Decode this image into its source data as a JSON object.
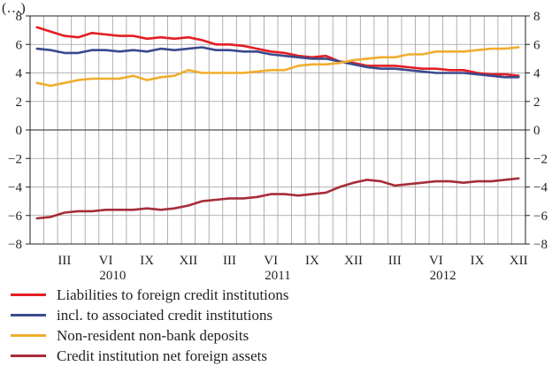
{
  "chart_data": {
    "type": "line",
    "title": "",
    "subtitle": "(…)",
    "xlabel": "",
    "ylabel": "",
    "ylim": [
      -8,
      8
    ],
    "yticks": [
      -8,
      -6,
      -4,
      -2,
      0,
      2,
      4,
      6,
      8
    ],
    "ytick_labels": [
      "−8",
      "−6",
      "−4",
      "−2",
      "0",
      "2",
      "4",
      "6",
      "8"
    ],
    "grid": true,
    "legend_position": "bottom",
    "months": [
      "2010-01",
      "2010-02",
      "2010-03",
      "2010-04",
      "2010-05",
      "2010-06",
      "2010-07",
      "2010-08",
      "2010-09",
      "2010-10",
      "2010-11",
      "2010-12",
      "2011-01",
      "2011-02",
      "2011-03",
      "2011-04",
      "2011-05",
      "2011-06",
      "2011-07",
      "2011-08",
      "2011-09",
      "2011-10",
      "2011-11",
      "2011-12",
      "2012-01",
      "2012-02",
      "2012-03",
      "2012-04",
      "2012-05",
      "2012-06",
      "2012-07",
      "2012-08",
      "2012-09",
      "2012-10",
      "2012-11",
      "2012-12"
    ],
    "xticks": [
      {
        "month_index": 2,
        "label": "III"
      },
      {
        "month_index": 5,
        "label": "VI"
      },
      {
        "month_index": 8,
        "label": "IX"
      },
      {
        "month_index": 11,
        "label": "XII"
      },
      {
        "month_index": 14,
        "label": "III"
      },
      {
        "month_index": 17,
        "label": "VI"
      },
      {
        "month_index": 20,
        "label": "IX"
      },
      {
        "month_index": 23,
        "label": "XII"
      },
      {
        "month_index": 26,
        "label": "III"
      },
      {
        "month_index": 29,
        "label": "VI"
      },
      {
        "month_index": 32,
        "label": "IX"
      },
      {
        "month_index": 35,
        "label": "XII"
      }
    ],
    "years": [
      {
        "label": "2010",
        "center_month_index": 5.5
      },
      {
        "label": "2011",
        "center_month_index": 17.5
      },
      {
        "label": "2012",
        "center_month_index": 29.5
      }
    ],
    "series": [
      {
        "name": "Liabilities to foreign credit institutions",
        "color": "#e31e24",
        "values": [
          7.2,
          6.9,
          6.6,
          6.5,
          6.8,
          6.7,
          6.6,
          6.6,
          6.4,
          6.5,
          6.4,
          6.5,
          6.3,
          6.0,
          6.0,
          5.9,
          5.7,
          5.5,
          5.4,
          5.2,
          5.1,
          5.2,
          4.8,
          4.7,
          4.5,
          4.5,
          4.5,
          4.4,
          4.3,
          4.3,
          4.2,
          4.2,
          4.0,
          3.9,
          3.9,
          3.8
        ]
      },
      {
        "name": "incl. to associated credit institutions",
        "color": "#3b4a8c",
        "values": [
          5.7,
          5.6,
          5.4,
          5.4,
          5.6,
          5.6,
          5.5,
          5.6,
          5.5,
          5.7,
          5.6,
          5.7,
          5.8,
          5.6,
          5.6,
          5.5,
          5.5,
          5.3,
          5.2,
          5.1,
          5.0,
          5.0,
          4.8,
          4.6,
          4.4,
          4.3,
          4.3,
          4.2,
          4.1,
          4.0,
          4.0,
          4.0,
          3.9,
          3.8,
          3.7,
          3.7
        ]
      },
      {
        "name": "Non-resident non-bank deposits",
        "color": "#f0ad2e",
        "values": [
          3.3,
          3.1,
          3.3,
          3.5,
          3.6,
          3.6,
          3.6,
          3.8,
          3.5,
          3.7,
          3.8,
          4.2,
          4.0,
          4.0,
          4.0,
          4.0,
          4.1,
          4.2,
          4.2,
          4.5,
          4.6,
          4.6,
          4.7,
          4.9,
          5.0,
          5.1,
          5.1,
          5.3,
          5.3,
          5.5,
          5.5,
          5.5,
          5.6,
          5.7,
          5.7,
          5.8
        ]
      },
      {
        "name": "Credit institution net foreign assets",
        "color": "#a62d38",
        "values": [
          -6.2,
          -6.1,
          -5.8,
          -5.7,
          -5.7,
          -5.6,
          -5.6,
          -5.6,
          -5.5,
          -5.6,
          -5.5,
          -5.3,
          -5.0,
          -4.9,
          -4.8,
          -4.8,
          -4.7,
          -4.5,
          -4.5,
          -4.6,
          -4.5,
          -4.4,
          -4.0,
          -3.7,
          -3.5,
          -3.6,
          -3.9,
          -3.8,
          -3.7,
          -3.6,
          -3.6,
          -3.7,
          -3.6,
          -3.6,
          -3.5,
          -3.4
        ]
      }
    ]
  }
}
